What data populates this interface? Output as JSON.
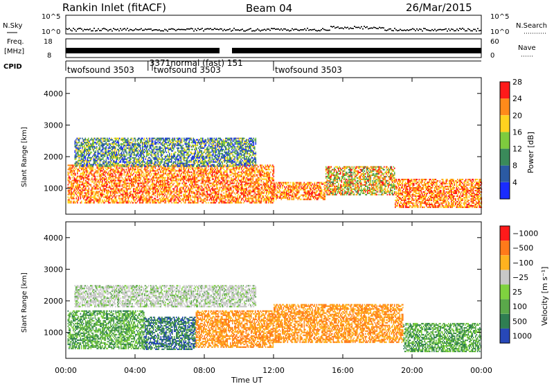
{
  "header": {
    "station": "Rankin Inlet (fitACF)",
    "beam": "Beam 04",
    "date": "26/Mar/2015"
  },
  "noise_panel": {
    "left_label": "N.Sky",
    "right_label": "N.Search",
    "left_ticks": [
      "10^5",
      "10^0"
    ],
    "right_ticks": [
      "10^5",
      "10^0"
    ]
  },
  "freq_panel": {
    "left_label_line1": "Freq.",
    "left_label_line2": "[MHz]",
    "right_label": "Nave",
    "left_ticks": [
      "18",
      "8"
    ],
    "right_ticks": [
      "60",
      "0"
    ]
  },
  "cpid": {
    "label": "CPID",
    "segments": [
      {
        "name": "twofsound 3503",
        "start_h": 0.0
      },
      {
        "name": "3371normal (fast) 151",
        "start_h": 4.75
      },
      {
        "name": "twofsound 3503",
        "start_h": 5.0
      },
      {
        "name": "twofsound 3503",
        "start_h": 12.0
      }
    ]
  },
  "chart_data": [
    {
      "type": "heatmap",
      "title": "",
      "xlabel": "Time UT",
      "ylabel": "Slant Range [km]",
      "xlim": [
        0,
        24
      ],
      "ylim": [
        180,
        4500
      ],
      "x_ticks": [
        "00:00",
        "04:00",
        "08:00",
        "12:00",
        "16:00",
        "20:00",
        "00:00"
      ],
      "y_ticks": [
        1000,
        2000,
        3000,
        4000
      ],
      "colorbar": {
        "label": "Power [dB]",
        "ticks": [
          4,
          8,
          12,
          16,
          20,
          24,
          28
        ],
        "colors": [
          "#1a2cff",
          "#2b5aa3",
          "#3a8a5a",
          "#7ecb3e",
          "#ffd21f",
          "#ff8a1a",
          "#ff1a1a"
        ]
      },
      "bands": [
        {
          "start_h": 0.1,
          "end_h": 12.0,
          "lower_km": 550,
          "upper_km": 1750,
          "level": "strong"
        },
        {
          "start_h": 12.0,
          "end_h": 15.0,
          "lower_km": 650,
          "upper_km": 1200,
          "level": "strong"
        },
        {
          "start_h": 15.0,
          "end_h": 19.0,
          "lower_km": 800,
          "upper_km": 1700,
          "level": "medium"
        },
        {
          "start_h": 19.0,
          "end_h": 24.0,
          "lower_km": 400,
          "upper_km": 1300,
          "level": "strong"
        },
        {
          "start_h": 0.5,
          "end_h": 11.0,
          "lower_km": 1700,
          "upper_km": 2600,
          "level": "weak"
        }
      ]
    },
    {
      "type": "heatmap",
      "title": "",
      "xlabel": "Time UT",
      "ylabel": "Slant Range [km]",
      "xlim": [
        0,
        24
      ],
      "ylim": [
        180,
        4500
      ],
      "x_ticks": [
        "00:00",
        "04:00",
        "08:00",
        "12:00",
        "16:00",
        "20:00",
        "00:00"
      ],
      "y_ticks": [
        1000,
        2000,
        3000,
        4000
      ],
      "colorbar": {
        "label": "Velocity [m s⁻¹]",
        "ticks": [
          "1000",
          "500",
          "100",
          "25",
          "−25",
          "−100",
          "−500",
          "−1000"
        ],
        "colors": [
          "#2748b8",
          "#2f7e52",
          "#5aa84a",
          "#7fd23f",
          "#c8c8c8",
          "#ffb21f",
          "#ff7a1a",
          "#ff1a1a"
        ]
      },
      "bands": [
        {
          "start_h": 0.1,
          "end_h": 4.5,
          "lower_km": 500,
          "upper_km": 1700,
          "level": "positive"
        },
        {
          "start_h": 4.5,
          "end_h": 7.5,
          "lower_km": 450,
          "upper_km": 1500,
          "level": "strong-positive"
        },
        {
          "start_h": 7.5,
          "end_h": 12.0,
          "lower_km": 550,
          "upper_km": 1700,
          "level": "negative"
        },
        {
          "start_h": 12.0,
          "end_h": 19.5,
          "lower_km": 700,
          "upper_km": 1900,
          "level": "negative"
        },
        {
          "start_h": 19.5,
          "end_h": 24.0,
          "lower_km": 400,
          "upper_km": 1300,
          "level": "positive"
        },
        {
          "start_h": 0.5,
          "end_h": 11.0,
          "lower_km": 1800,
          "upper_km": 2500,
          "level": "ground"
        }
      ]
    }
  ]
}
